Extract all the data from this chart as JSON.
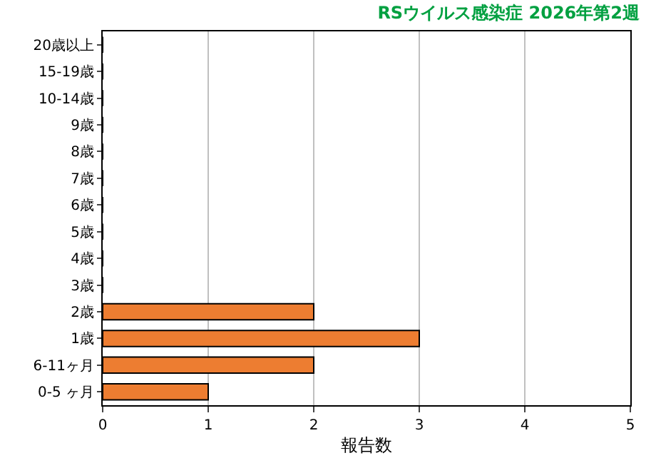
{
  "chart_data": {
    "type": "bar",
    "orientation": "horizontal",
    "title": "RSウイルス感染症 2026年第2週",
    "xlabel": "報告数",
    "categories": [
      "20歳以上",
      "15-19歳",
      "10-14歳",
      "9歳",
      "8歳",
      "7歳",
      "6歳",
      "5歳",
      "4歳",
      "3歳",
      "2歳",
      "1歳",
      "6-11ヶ月",
      "0-5 ヶ月"
    ],
    "values": [
      0,
      0,
      0,
      0,
      0,
      0,
      0,
      0,
      0,
      0,
      2,
      3,
      2,
      1
    ],
    "color": "#ed7d31",
    "xlim": [
      0,
      5
    ],
    "xticks": [
      0,
      1,
      2,
      3,
      4,
      5
    ],
    "grid": "x"
  }
}
